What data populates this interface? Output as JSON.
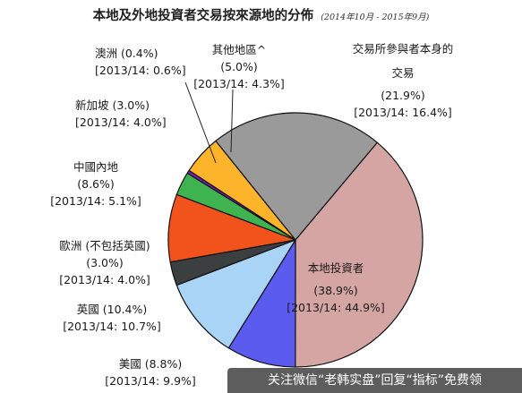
{
  "header": {
    "title": "本地及外地投資者交易按來源地的分佈",
    "subtitle": "(2014年10月 - 2015年9月)"
  },
  "watermark": "关注微信“老韩实盘”回复“指标”免费领",
  "colors": {
    "本地投資者": "#d4a5a2",
    "美國": "#5b5bf0",
    "英國": "#a9d4f5",
    "歐洲": "#3c3f40",
    "中國內地": "#f2531c",
    "新加坡": "#3fb34f",
    "澳洲": "#7b1fbe",
    "其他地區": "#fdb42b",
    "交易所參與者本身的交易": "#9a9a9a",
    "outline": "#111111"
  },
  "chart_data": {
    "type": "pie",
    "title": "本地及外地投資者交易按來源地的分佈",
    "subtitle": "(2014年10月 - 2015年9月)",
    "categories": [
      "本地投資者",
      "美國",
      "英國",
      "歐洲",
      "中國內地",
      "新加坡",
      "澳洲",
      "其他地區",
      "交易所參與者本身的交易"
    ],
    "values": [
      38.9,
      8.8,
      10.4,
      3.0,
      8.6,
      3.0,
      0.4,
      5.0,
      21.9
    ],
    "values_2013_14": [
      44.9,
      9.9,
      10.7,
      4.0,
      5.1,
      4.0,
      0.6,
      4.3,
      16.4
    ],
    "slices": [
      {
        "name": "本地投資者",
        "value": 38.9,
        "prev": 44.9,
        "lines": [
          "本地投資者",
          "(38.9%)",
          "[2013/14: 44.9%]"
        ]
      },
      {
        "name": "美國",
        "value": 8.8,
        "prev": 9.9,
        "lines": [
          "美國 (8.8%)",
          "[2013/14: 9.9%]"
        ]
      },
      {
        "name": "英國",
        "value": 10.4,
        "prev": 10.7,
        "lines": [
          "英國 (10.4%)",
          "[2013/14: 10.7%]"
        ]
      },
      {
        "name": "歐洲",
        "value": 3.0,
        "prev": 4.0,
        "lines": [
          "歐洲 (不包括英國)",
          "(3.0%)",
          "[2013/14: 4.0%]"
        ]
      },
      {
        "name": "中國內地",
        "value": 8.6,
        "prev": 5.1,
        "lines": [
          "中國內地",
          "(8.6%)",
          "[2013/14: 5.1%]"
        ]
      },
      {
        "name": "新加坡",
        "value": 3.0,
        "prev": 4.0,
        "lines": [
          "新加坡 (3.0%)",
          "[2013/14: 4.0%]"
        ]
      },
      {
        "name": "澳洲",
        "value": 0.4,
        "prev": 0.6,
        "lines": [
          "澳洲 (0.4%)",
          "[2013/14: 0.6%]"
        ]
      },
      {
        "name": "其他地區",
        "value": 5.0,
        "prev": 4.3,
        "lines": [
          "其他地區^",
          "(5.0%)",
          "[2013/14: 4.3%]"
        ]
      },
      {
        "name": "交易所參與者本身的交易",
        "value": 21.9,
        "prev": 16.4,
        "lines": [
          "交易所參與者本身的",
          "交易",
          "(21.9%)",
          "[2013/14: 16.4%]"
        ]
      }
    ],
    "legend": "none"
  }
}
